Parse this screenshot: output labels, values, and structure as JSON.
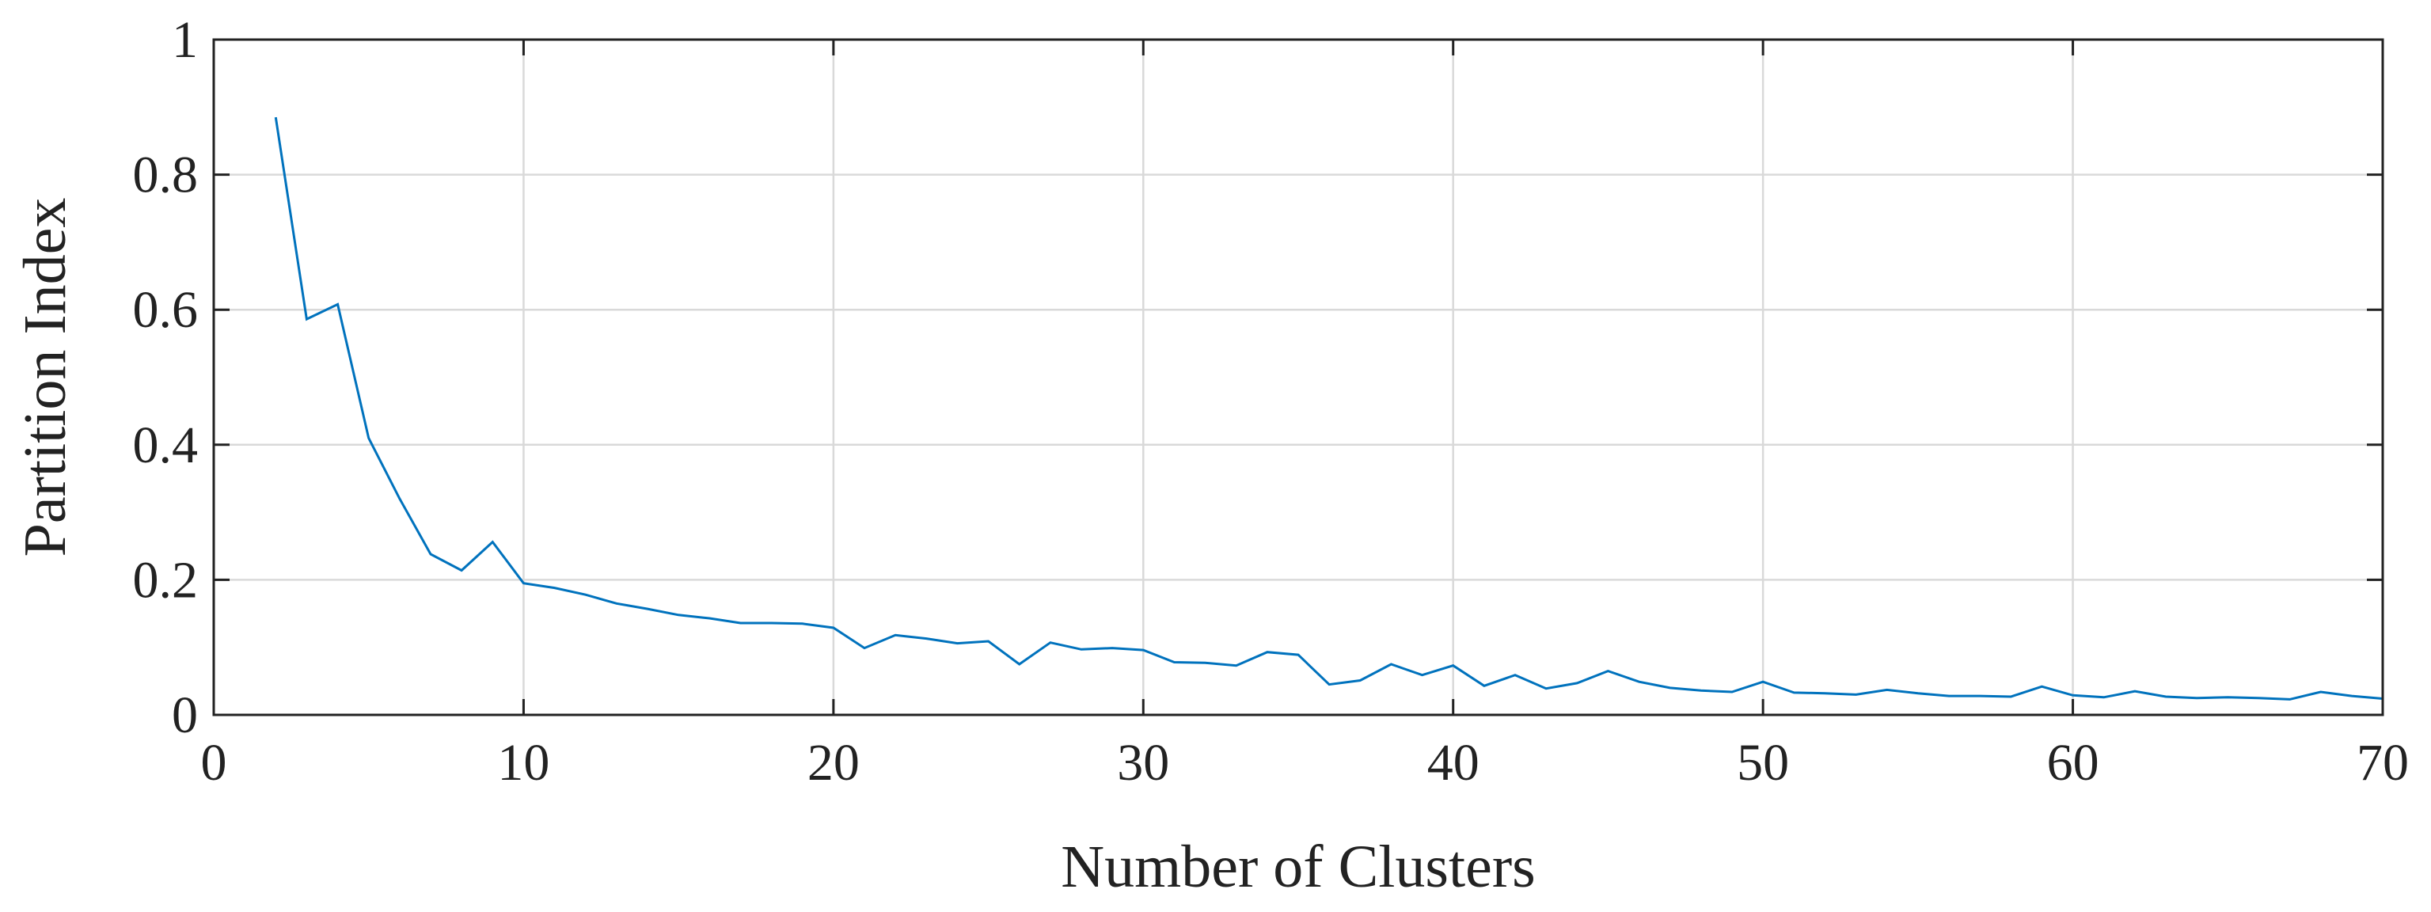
{
  "chart_data": {
    "type": "line",
    "title": "",
    "xlabel": "Number of Clusters",
    "ylabel": "Partition Index",
    "xlim": [
      0,
      70
    ],
    "ylim": [
      0,
      1
    ],
    "x_ticks": [
      0,
      10,
      20,
      30,
      40,
      50,
      60,
      70
    ],
    "y_ticks": [
      0,
      0.2,
      0.4,
      0.6,
      0.8,
      1
    ],
    "x_tick_labels": [
      "0",
      "10",
      "20",
      "30",
      "40",
      "50",
      "60",
      "70"
    ],
    "y_tick_labels": [
      "0",
      "0.2",
      "0.4",
      "0.6",
      "0.8",
      "1"
    ],
    "grid": true,
    "line_color": "#0072BD",
    "series": [
      {
        "x": [
          2,
          3,
          4,
          5,
          6,
          7,
          8,
          9,
          10,
          11,
          12,
          13,
          14,
          15,
          16,
          17,
          18,
          19,
          20,
          21,
          22,
          23,
          24,
          25,
          26,
          27,
          28,
          29,
          30,
          31,
          32,
          33,
          34,
          35,
          36,
          37,
          38,
          39,
          40,
          41,
          42,
          43,
          44,
          45,
          46,
          47,
          48,
          49,
          50,
          51,
          52,
          53,
          54,
          55,
          56,
          57,
          58,
          59,
          60,
          61,
          62,
          63,
          64,
          65,
          66,
          67,
          68,
          69,
          70
        ],
        "y": [
          0.885,
          0.586,
          0.608,
          0.41,
          0.32,
          0.238,
          0.214,
          0.256,
          0.195,
          0.188,
          0.178,
          0.165,
          0.157,
          0.148,
          0.143,
          0.136,
          0.136,
          0.135,
          0.129,
          0.099,
          0.118,
          0.113,
          0.106,
          0.109,
          0.075,
          0.107,
          0.097,
          0.099,
          0.096,
          0.078,
          0.077,
          0.073,
          0.093,
          0.089,
          0.045,
          0.051,
          0.075,
          0.059,
          0.073,
          0.043,
          0.059,
          0.039,
          0.047,
          0.065,
          0.049,
          0.04,
          0.036,
          0.034,
          0.049,
          0.033,
          0.032,
          0.03,
          0.037,
          0.032,
          0.028,
          0.028,
          0.027,
          0.042,
          0.029,
          0.026,
          0.035,
          0.027,
          0.025,
          0.026,
          0.025,
          0.023,
          0.034,
          0.028,
          0.024
        ]
      }
    ]
  }
}
